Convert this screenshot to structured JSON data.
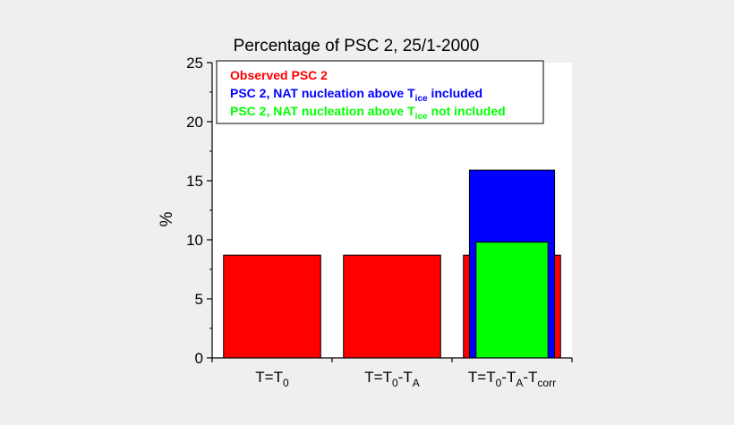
{
  "chart_data": {
    "type": "bar",
    "title": "Percentage of PSC 2, 25/1-2000",
    "xlabel": "",
    "ylabel": "%",
    "ylim": [
      0,
      25
    ],
    "yticks": [
      "0",
      "5",
      "10",
      "15",
      "20",
      "25"
    ],
    "categories": [
      {
        "main": "T=T",
        "parts": [
          {
            "sub": "0"
          }
        ]
      },
      {
        "main": "T=T",
        "parts": [
          {
            "sub": "0"
          },
          {
            "text": "-T"
          },
          {
            "sub": "A"
          }
        ]
      },
      {
        "main": "T=T",
        "parts": [
          {
            "sub": "0"
          },
          {
            "text": "-T"
          },
          {
            "sub": "A"
          },
          {
            "text": "-T"
          },
          {
            "sub": "corr"
          }
        ]
      }
    ],
    "series": [
      {
        "name": "Observed PSC 2",
        "color": "#ff0000",
        "values": [
          8.7,
          8.7,
          8.7
        ]
      },
      {
        "name": "PSC 2, NAT nucleation above T_ice included",
        "color": "#0000ff",
        "values": [
          null,
          null,
          15.9
        ]
      },
      {
        "name": "PSC 2, NAT nucleation above T_ice not included",
        "color": "#00ff00",
        "values": [
          null,
          null,
          9.8
        ]
      }
    ],
    "legend": {
      "position": "top-left",
      "entries": [
        {
          "pre": "Observed PSC 2",
          "sub": "",
          "post": "",
          "color": "#ff0000"
        },
        {
          "pre": "PSC 2, NAT nucleation above T",
          "sub": "ice",
          "post": " included",
          "color": "#0000ff"
        },
        {
          "pre": "PSC 2, NAT nucleation above T",
          "sub": "ice",
          "post": " not included",
          "color": "#00ff00"
        }
      ]
    },
    "grid": false
  }
}
